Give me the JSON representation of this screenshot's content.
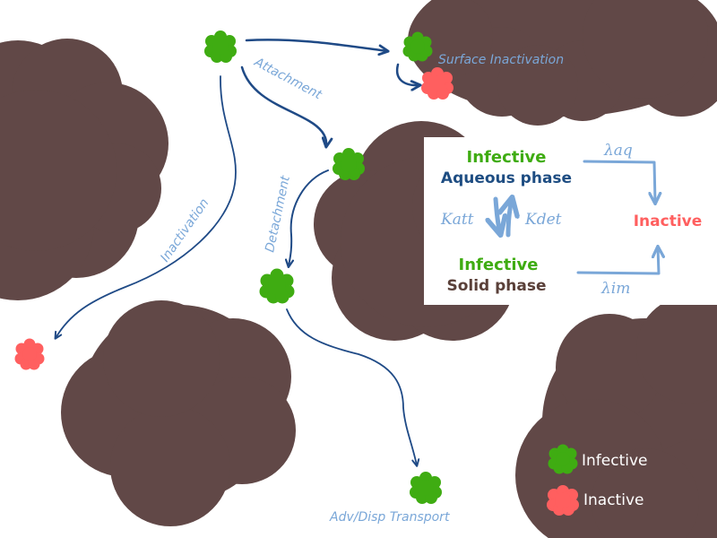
{
  "colors": {
    "grain": "#614847",
    "infective": "#3fac12",
    "inactive": "#ff5f5f",
    "arrow_dark": "#1f4a86",
    "arrow_light": "#7aa7d8",
    "label": "#7aa7d8",
    "navy": "#1e4d82",
    "solid_brown": "#5a4039"
  },
  "labels": {
    "attachment": "Attachment",
    "surface_inactivation": "Surface Inactivation",
    "detachment": "Detachment",
    "inactivation": "Inactivation",
    "adv_disp": "Adv/Disp Transport"
  },
  "box": {
    "infective_aq": "Infective",
    "aqueous_phase": "Aqueous phase",
    "infective_solid": "Infective",
    "solid_phase": "Solid phase",
    "inactive": "Inactive",
    "k_att": "Katt",
    "k_det": "Kdet",
    "lambda_aq": "λaq",
    "lambda_im": "λim"
  },
  "legend": {
    "infective": "Infective",
    "inactive": "Inactive"
  }
}
